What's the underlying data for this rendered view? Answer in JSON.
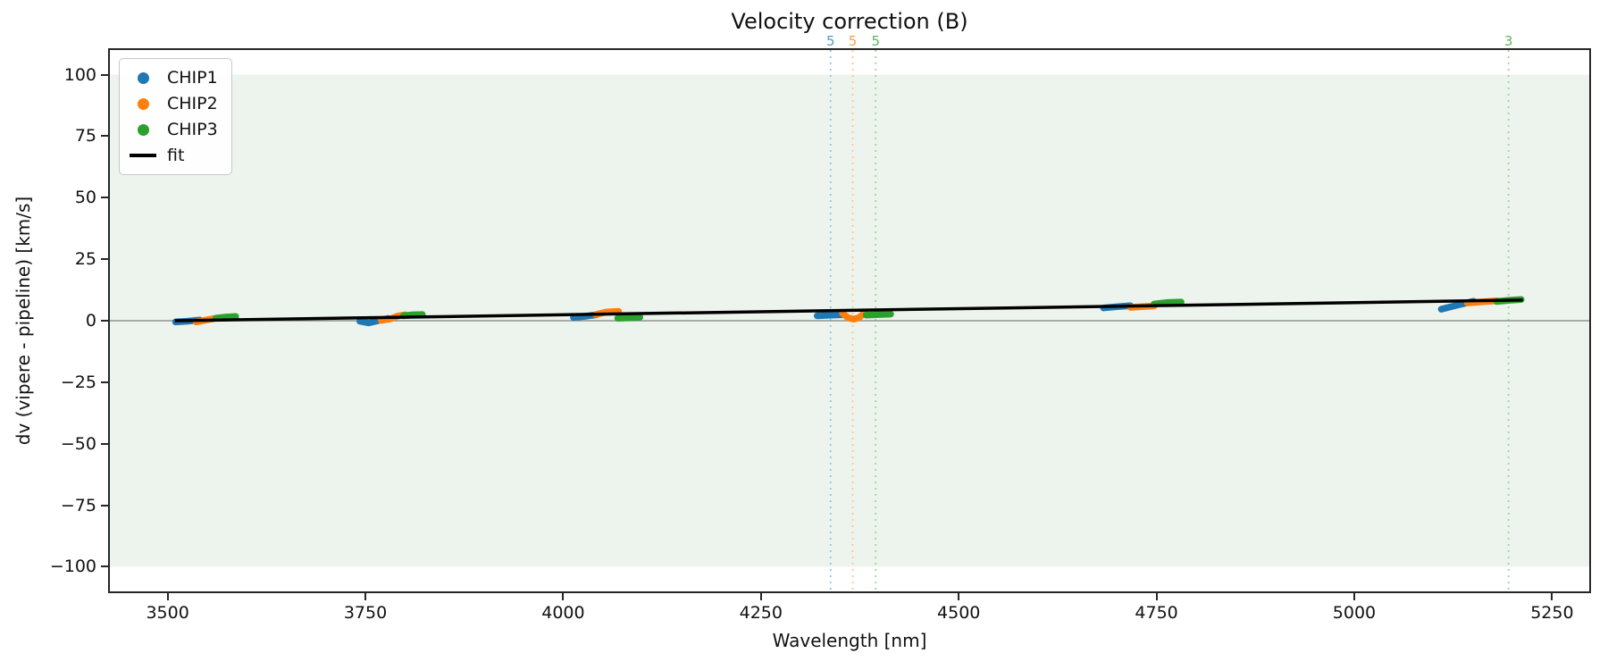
{
  "figure": {
    "title": "Velocity correction (B)"
  },
  "chart_data": {
    "type": "scatter",
    "title": "Velocity correction (B)",
    "xlabel": "Wavelength [nm]",
    "ylabel": "dv (vipere - pipeline) [km/s]",
    "xlim": [
      3427,
      5297
    ],
    "ylim": [
      -110,
      110
    ],
    "grid": false,
    "legend_position": "upper-left",
    "x_ticks": {
      "values": [
        3500,
        3750,
        4000,
        4250,
        4500,
        4750,
        5000,
        5250
      ],
      "labels": [
        "3500",
        "3750",
        "4000",
        "4250",
        "4500",
        "4750",
        "5000",
        "5250"
      ]
    },
    "y_ticks": {
      "values": [
        100,
        75,
        50,
        25,
        0,
        -25,
        -50,
        -75,
        -100
      ],
      "labels": [
        "100",
        "75",
        "50",
        "25",
        "0",
        "−25",
        "−50",
        "−75",
        "−100"
      ]
    },
    "shaded_band": {
      "ymin": -100,
      "ymax": 100,
      "color": "#edf4ed"
    },
    "zero_line": {
      "y": 0,
      "color": "#808080"
    },
    "series": [
      {
        "name": "CHIP1",
        "color": "#1f77b4",
        "marker": "dot",
        "segments": [
          [
            [
              3510,
              -0.5
            ],
            [
              3524,
              -0.2
            ],
            [
              3541,
              0.3
            ]
          ],
          [
            [
              3743,
              -0.2
            ],
            [
              3754,
              -0.9
            ],
            [
              3767,
              0.1
            ],
            [
              3779,
              0.9
            ]
          ],
          [
            [
              4013,
              1.3
            ],
            [
              4028,
              1.8
            ],
            [
              4042,
              2.4
            ]
          ],
          [
            [
              4321,
              2.0
            ],
            [
              4336,
              2.2
            ],
            [
              4352,
              2.4
            ]
          ],
          [
            [
              4683,
              5.2
            ],
            [
              4700,
              5.7
            ],
            [
              4717,
              6.1
            ]
          ],
          [
            [
              5110,
              4.7
            ],
            [
              5130,
              6.3
            ],
            [
              5151,
              7.9
            ]
          ]
        ]
      },
      {
        "name": "CHIP2",
        "color": "#ff7f0e",
        "marker": "dot",
        "segments": [
          [
            [
              3536,
              -0.5
            ],
            [
              3549,
              0.3
            ],
            [
              3563,
              1.1
            ]
          ],
          [
            [
              3770,
              0.1
            ],
            [
              3781,
              0.7
            ],
            [
              3791,
              1.9
            ],
            [
              3800,
              2.4
            ]
          ],
          [
            [
              4041,
              2.5
            ],
            [
              4054,
              3.5
            ],
            [
              4070,
              3.8
            ]
          ],
          [
            [
              4353,
              3.0
            ],
            [
              4360,
              1.2
            ],
            [
              4367,
              0.6
            ],
            [
              4374,
              1.2
            ],
            [
              4381,
              3.2
            ]
          ],
          [
            [
              4717,
              5.4
            ],
            [
              4732,
              5.7
            ],
            [
              4747,
              6.0
            ]
          ],
          [
            [
              5143,
              7.2
            ],
            [
              5162,
              7.7
            ],
            [
              5180,
              8.1
            ]
          ]
        ]
      },
      {
        "name": "CHIP3",
        "color": "#2ca02c",
        "marker": "dot",
        "segments": [
          [
            [
              3561,
              1.0
            ],
            [
              3574,
              1.5
            ],
            [
              3586,
              1.7
            ]
          ],
          [
            [
              3798,
              2.0
            ],
            [
              3810,
              2.4
            ],
            [
              3822,
              2.5
            ]
          ],
          [
            [
              4069,
              1.0
            ],
            [
              4083,
              1.2
            ],
            [
              4097,
              1.4
            ]
          ],
          [
            [
              4383,
              2.3
            ],
            [
              4398,
              2.5
            ],
            [
              4414,
              2.7
            ]
          ],
          [
            [
              4747,
              6.8
            ],
            [
              4764,
              7.4
            ],
            [
              4781,
              7.6
            ]
          ],
          [
            [
              5180,
              7.8
            ],
            [
              5196,
              8.3
            ],
            [
              5211,
              8.6
            ]
          ]
        ]
      }
    ],
    "fit_line": {
      "name": "fit",
      "color": "#000000",
      "points": [
        [
          3509,
          0.0
        ],
        [
          5213,
          8.4
        ]
      ]
    },
    "marker_lines": [
      {
        "x": 4338,
        "label": "5",
        "label_color": "#579bc9",
        "line_color": "#9ac2dd"
      },
      {
        "x": 4366,
        "label": "5",
        "label_color": "#ff9f46",
        "line_color": "#ffc592"
      },
      {
        "x": 4395,
        "label": "5",
        "label_color": "#61b361",
        "line_color": "#a0d4a0"
      },
      {
        "x": 5195,
        "label": "3",
        "label_color": "#61b361",
        "line_color": "#a0d4a0"
      }
    ],
    "legend": {
      "items": [
        {
          "label": "CHIP1",
          "type": "dot",
          "color": "#1f77b4"
        },
        {
          "label": "CHIP2",
          "type": "dot",
          "color": "#ff7f0e"
        },
        {
          "label": "CHIP3",
          "type": "dot",
          "color": "#2ca02c"
        },
        {
          "label": "fit",
          "type": "line",
          "color": "#000000"
        }
      ]
    }
  }
}
